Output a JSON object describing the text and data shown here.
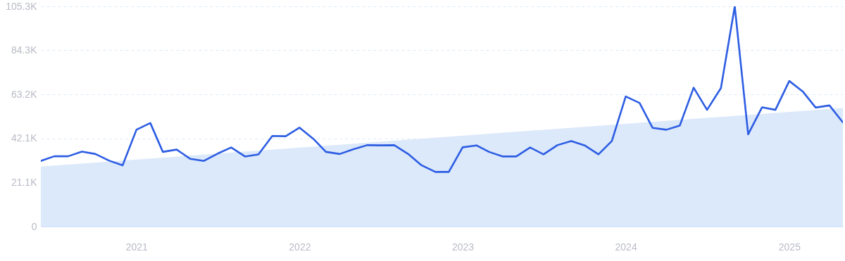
{
  "chart_data": {
    "type": "line",
    "x": [
      "2020-06",
      "2020-07",
      "2020-08",
      "2020-09",
      "2020-10",
      "2020-11",
      "2020-12",
      "2021-01",
      "2021-02",
      "2021-03",
      "2021-04",
      "2021-05",
      "2021-06",
      "2021-07",
      "2021-08",
      "2021-09",
      "2021-10",
      "2021-11",
      "2021-12",
      "2022-01",
      "2022-02",
      "2022-03",
      "2022-04",
      "2022-05",
      "2022-06",
      "2022-07",
      "2022-08",
      "2022-09",
      "2022-10",
      "2022-11",
      "2022-12",
      "2023-01",
      "2023-02",
      "2023-03",
      "2023-04",
      "2023-05",
      "2023-06",
      "2023-07",
      "2023-08",
      "2023-09",
      "2023-10",
      "2023-11",
      "2023-12",
      "2024-01",
      "2024-02",
      "2024-03",
      "2024-04",
      "2024-05",
      "2024-06",
      "2024-07",
      "2024-08",
      "2024-09",
      "2024-10",
      "2024-11",
      "2024-12",
      "2025-01",
      "2025-02",
      "2025-03",
      "2025-04",
      "2025-05"
    ],
    "series": [
      {
        "type": "area",
        "color": "#dce9fa",
        "x": [
          "2020-06",
          "2025-05"
        ],
        "values": [
          28700,
          56700
        ]
      },
      {
        "color": "#2d5de3",
        "values": [
          31400,
          33600,
          33600,
          35800,
          34700,
          31500,
          29300,
          46300,
          49500,
          35700,
          36800,
          32400,
          31400,
          34800,
          37800,
          33500,
          34500,
          43300,
          43200,
          47300,
          41900,
          35700,
          34700,
          36900,
          38900,
          38800,
          38900,
          34700,
          29300,
          26100,
          26100,
          37900,
          38800,
          35700,
          33500,
          33500,
          37800,
          34500,
          38900,
          40900,
          38800,
          34500,
          40900,
          62200,
          59100,
          47200,
          46300,
          48300,
          66400,
          55800,
          66200,
          105300,
          44100,
          57000,
          55800,
          69600,
          64400,
          56900,
          57900,
          49800
        ]
      }
    ],
    "xlim": [
      "2020-06",
      "2025-05"
    ],
    "xticks": [
      {
        "value": "2021-01",
        "label": "2021"
      },
      {
        "value": "2022-01",
        "label": "2022"
      },
      {
        "value": "2023-01",
        "label": "2023"
      },
      {
        "value": "2024-01",
        "label": "2024"
      },
      {
        "value": "2025-01",
        "label": "2025"
      }
    ],
    "ylim": [
      0,
      105300
    ],
    "yticks": [
      0,
      {
        "value": 21100,
        "label": "21.1K"
      },
      {
        "value": 42100,
        "label": "42.1K"
      },
      {
        "value": 63200,
        "label": "63.2K"
      },
      {
        "value": 84300,
        "label": "84.3K"
      },
      {
        "value": 105300,
        "label": "105.3K"
      }
    ],
    "grid": "y"
  }
}
